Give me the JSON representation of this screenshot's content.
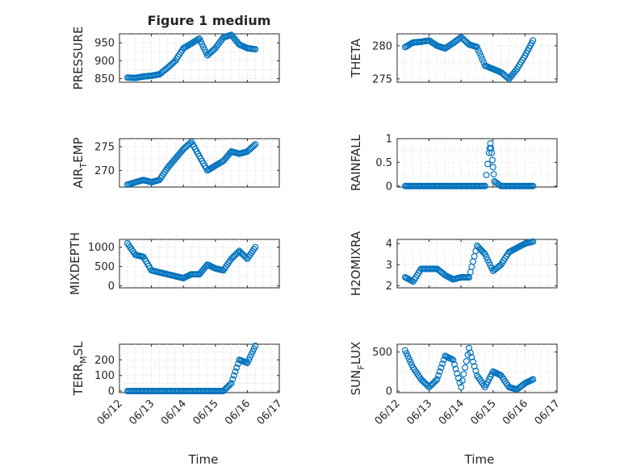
{
  "title": "Figure 1 medium",
  "xlabel": "Time",
  "colors": {
    "marker": "#0072BD",
    "axis": "#262626",
    "grid": "#d6d6d6"
  },
  "chart_data": [
    {
      "type": "scatter",
      "ylabel": "PRESSURE",
      "ylabel_parts": {
        "base": "PRESSURE",
        "sub": "",
        "rest": ""
      },
      "title": "Figure 1 medium",
      "xlim": [
        "2012-06-12",
        "2012-06-17"
      ],
      "ylim": [
        840,
        975
      ],
      "yticks": [
        850,
        900,
        950
      ],
      "ytick_labels": [
        "850",
        "900",
        "950"
      ],
      "grid": true,
      "x": [
        "2012-06-12T06:00",
        "2012-06-12T12:00",
        "2012-06-12T18:00",
        "2012-06-13T00:00",
        "2012-06-13T06:00",
        "2012-06-13T12:00",
        "2012-06-13T18:00",
        "2012-06-14T00:00",
        "2012-06-14T06:00",
        "2012-06-14T12:00",
        "2012-06-14T18:00",
        "2012-06-15T00:00",
        "2012-06-15T06:00",
        "2012-06-15T12:00",
        "2012-06-15T18:00",
        "2012-06-16T00:00",
        "2012-06-16T06:00"
      ],
      "y": [
        853,
        852,
        856,
        858,
        862,
        880,
        900,
        935,
        948,
        962,
        915,
        935,
        965,
        972,
        945,
        935,
        932
      ]
    },
    {
      "type": "scatter",
      "ylabel": "THETA",
      "ylabel_parts": {
        "base": "THETA",
        "sub": "",
        "rest": ""
      },
      "xlim": [
        "2012-06-12",
        "2012-06-17"
      ],
      "ylim": [
        274.5,
        281.8
      ],
      "yticks": [
        275,
        280
      ],
      "ytick_labels": [
        "275",
        "280"
      ],
      "grid": true,
      "x": [
        "2012-06-12T06:00",
        "2012-06-12T12:00",
        "2012-06-12T18:00",
        "2012-06-13T00:00",
        "2012-06-13T06:00",
        "2012-06-13T12:00",
        "2012-06-13T18:00",
        "2012-06-14T00:00",
        "2012-06-14T06:00",
        "2012-06-14T12:00",
        "2012-06-14T18:00",
        "2012-06-15T00:00",
        "2012-06-15T06:00",
        "2012-06-15T12:00",
        "2012-06-15T18:00",
        "2012-06-16T00:00",
        "2012-06-16T06:00"
      ],
      "y": [
        279.8,
        280.5,
        280.6,
        280.8,
        280.0,
        279.6,
        280.4,
        281.3,
        280.2,
        279.8,
        277.0,
        276.5,
        276.0,
        275.0,
        276.5,
        278.5,
        280.8
      ]
    },
    {
      "type": "scatter",
      "ylabel": "AIR_TEMP",
      "ylabel_parts": {
        "base": "AIR",
        "sub": "T",
        "rest": "EMP"
      },
      "xlim": [
        "2012-06-12",
        "2012-06-17"
      ],
      "ylim": [
        266.5,
        276.7
      ],
      "yticks": [
        270,
        275
      ],
      "ytick_labels": [
        "270",
        "275"
      ],
      "grid": true,
      "x": [
        "2012-06-12T06:00",
        "2012-06-12T12:00",
        "2012-06-12T18:00",
        "2012-06-13T00:00",
        "2012-06-13T06:00",
        "2012-06-13T12:00",
        "2012-06-13T18:00",
        "2012-06-14T00:00",
        "2012-06-14T06:00",
        "2012-06-14T12:00",
        "2012-06-14T18:00",
        "2012-06-15T00:00",
        "2012-06-15T06:00",
        "2012-06-15T12:00",
        "2012-06-15T18:00",
        "2012-06-16T00:00",
        "2012-06-16T06:00"
      ],
      "y": [
        267.0,
        267.5,
        268.0,
        267.5,
        268.0,
        270.5,
        272.5,
        274.5,
        276.0,
        273.0,
        270.0,
        271.0,
        272.0,
        274.0,
        273.5,
        274.0,
        275.5
      ]
    },
    {
      "type": "scatter",
      "ylabel": "RAINFALL",
      "ylabel_parts": {
        "base": "RAINFALL",
        "sub": "",
        "rest": ""
      },
      "xlim": [
        "2012-06-12",
        "2012-06-17"
      ],
      "ylim": [
        -0.02,
        1.0
      ],
      "yticks": [
        0,
        0.5,
        1
      ],
      "ytick_labels": [
        "0",
        "0.5",
        "1"
      ],
      "grid": true,
      "x": [
        "2012-06-12T06:00",
        "2012-06-12T12:00",
        "2012-06-12T18:00",
        "2012-06-13T00:00",
        "2012-06-13T06:00",
        "2012-06-13T12:00",
        "2012-06-13T18:00",
        "2012-06-14T00:00",
        "2012-06-14T06:00",
        "2012-06-14T12:00",
        "2012-06-14T18:00",
        "2012-06-14T21:00",
        "2012-06-14T22:00",
        "2012-06-14T23:00",
        "2012-06-15T00:00",
        "2012-06-15T01:00",
        "2012-06-15T06:00",
        "2012-06-15T12:00",
        "2012-06-15T18:00",
        "2012-06-16T00:00",
        "2012-06-16T06:00"
      ],
      "y": [
        0,
        0,
        0,
        0,
        0,
        0,
        0,
        0,
        0,
        0,
        0,
        0.7,
        0.9,
        0.7,
        0.4,
        0.1,
        0,
        0,
        0,
        0,
        0
      ]
    },
    {
      "type": "scatter",
      "ylabel": "MIXDEPTH",
      "ylabel_parts": {
        "base": "MIXDEPTH",
        "sub": "",
        "rest": ""
      },
      "xlim": [
        "2012-06-12",
        "2012-06-17"
      ],
      "ylim": [
        -50,
        1200
      ],
      "yticks": [
        0,
        500,
        1000
      ],
      "ytick_labels": [
        "0",
        "500",
        "1000"
      ],
      "grid": true,
      "x": [
        "2012-06-12T06:00",
        "2012-06-12T12:00",
        "2012-06-12T18:00",
        "2012-06-13T00:00",
        "2012-06-13T06:00",
        "2012-06-13T12:00",
        "2012-06-13T18:00",
        "2012-06-14T00:00",
        "2012-06-14T06:00",
        "2012-06-14T12:00",
        "2012-06-14T18:00",
        "2012-06-15T00:00",
        "2012-06-15T06:00",
        "2012-06-15T12:00",
        "2012-06-15T18:00",
        "2012-06-16T00:00",
        "2012-06-16T06:00"
      ],
      "y": [
        1100,
        800,
        750,
        400,
        350,
        300,
        250,
        200,
        300,
        300,
        550,
        450,
        400,
        700,
        900,
        700,
        1000
      ]
    },
    {
      "type": "scatter",
      "ylabel": "H2OMIXRA",
      "ylabel_parts": {
        "base": "H2OMIXRA",
        "sub": "",
        "rest": ""
      },
      "xlim": [
        "2012-06-12",
        "2012-06-17"
      ],
      "ylim": [
        1.9,
        4.2
      ],
      "yticks": [
        2,
        3,
        4
      ],
      "ytick_labels": [
        "2",
        "3",
        "4"
      ],
      "grid": true,
      "x": [
        "2012-06-12T06:00",
        "2012-06-12T12:00",
        "2012-06-12T18:00",
        "2012-06-13T00:00",
        "2012-06-13T06:00",
        "2012-06-13T12:00",
        "2012-06-13T18:00",
        "2012-06-14T00:00",
        "2012-06-14T06:00",
        "2012-06-14T12:00",
        "2012-06-14T18:00",
        "2012-06-15T00:00",
        "2012-06-15T06:00",
        "2012-06-15T12:00",
        "2012-06-15T18:00",
        "2012-06-16T00:00",
        "2012-06-16T06:00"
      ],
      "y": [
        2.4,
        2.2,
        2.8,
        2.8,
        2.8,
        2.5,
        2.3,
        2.4,
        2.4,
        3.9,
        3.5,
        2.7,
        3.0,
        3.6,
        3.8,
        4.0,
        4.1
      ]
    },
    {
      "type": "scatter",
      "ylabel": "TERR_MSL",
      "ylabel_parts": {
        "base": "TERR",
        "sub": "M",
        "rest": "SL"
      },
      "xlim": [
        "2012-06-12",
        "2012-06-17"
      ],
      "ylim": [
        -10,
        300
      ],
      "yticks": [
        0,
        100,
        200
      ],
      "ytick_labels": [
        "0",
        "100",
        "200"
      ],
      "grid": true,
      "x": [
        "2012-06-12T06:00",
        "2012-06-12T12:00",
        "2012-06-12T18:00",
        "2012-06-13T00:00",
        "2012-06-13T06:00",
        "2012-06-13T12:00",
        "2012-06-13T18:00",
        "2012-06-14T00:00",
        "2012-06-14T06:00",
        "2012-06-14T12:00",
        "2012-06-14T18:00",
        "2012-06-15T00:00",
        "2012-06-15T06:00",
        "2012-06-15T12:00",
        "2012-06-15T18:00",
        "2012-06-16T00:00",
        "2012-06-16T06:00"
      ],
      "y": [
        0,
        0,
        0,
        0,
        0,
        0,
        0,
        0,
        0,
        0,
        0,
        0,
        0,
        50,
        200,
        180,
        290
      ]
    },
    {
      "type": "scatter",
      "ylabel": "SUN_FLUX",
      "ylabel_parts": {
        "base": "SUN",
        "sub": "F",
        "rest": "LUX"
      },
      "xlim": [
        "2012-06-12",
        "2012-06-17"
      ],
      "ylim": [
        -20,
        600
      ],
      "yticks": [
        0,
        500
      ],
      "ytick_labels": [
        "0",
        "500"
      ],
      "grid": true,
      "x": [
        "2012-06-12T06:00",
        "2012-06-12T12:00",
        "2012-06-12T18:00",
        "2012-06-13T00:00",
        "2012-06-13T06:00",
        "2012-06-13T12:00",
        "2012-06-13T18:00",
        "2012-06-14T00:00",
        "2012-06-14T06:00",
        "2012-06-14T12:00",
        "2012-06-14T18:00",
        "2012-06-15T00:00",
        "2012-06-15T06:00",
        "2012-06-15T12:00",
        "2012-06-15T18:00",
        "2012-06-16T00:00",
        "2012-06-16T06:00"
      ],
      "y": [
        520,
        300,
        150,
        50,
        150,
        450,
        400,
        50,
        550,
        200,
        50,
        250,
        200,
        50,
        20,
        100,
        150
      ]
    }
  ],
  "xticks": [
    "2012-06-12",
    "2012-06-13",
    "2012-06-14",
    "2012-06-15",
    "2012-06-16",
    "2012-06-17"
  ],
  "xtick_labels": [
    "06/12",
    "06/13",
    "06/14",
    "06/15",
    "06/16",
    "06/17"
  ]
}
